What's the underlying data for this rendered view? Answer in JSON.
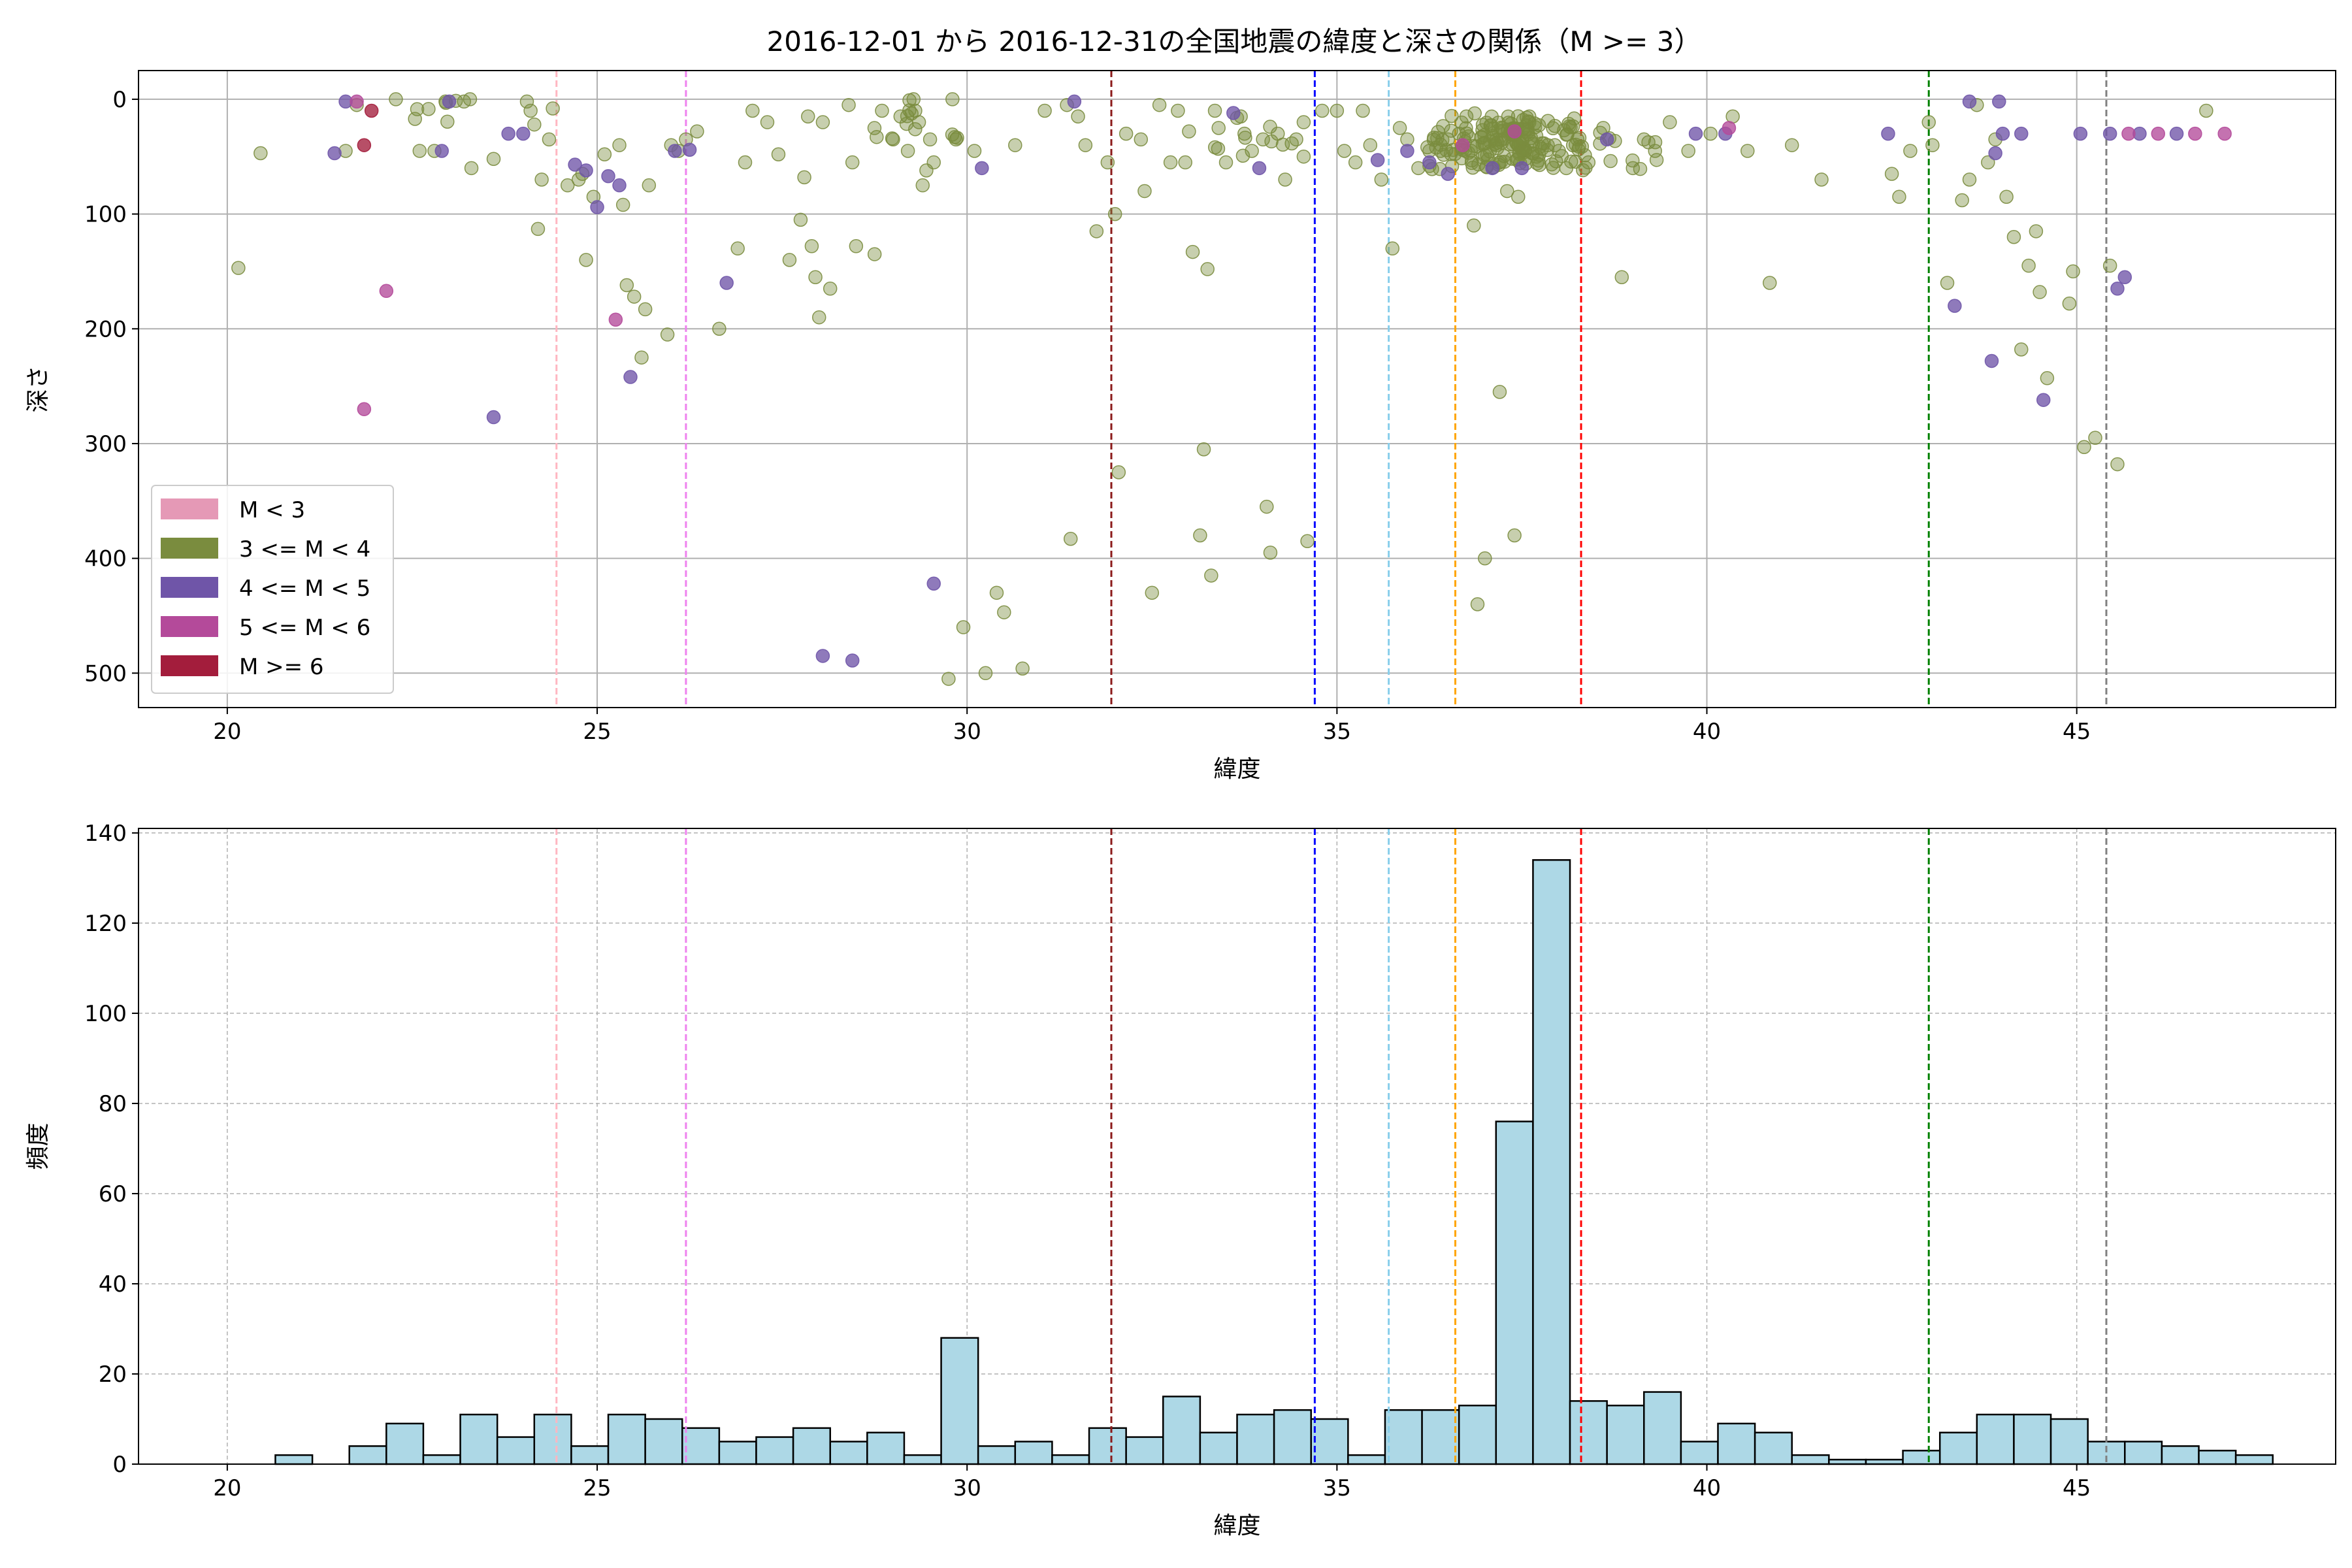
{
  "title": "2016-12-01 から 2016-12-31の全国地震の緯度と深さの関係（M >= 3）",
  "colors": {
    "m_lt3": "#e599b6",
    "m3_4": "#7a8c3e",
    "m4_5": "#6f55a8",
    "m5_6": "#b44a9a",
    "m_ge6": "#a31d3c",
    "hist_fill": "#add8e6",
    "hist_edge": "#000000",
    "grid": "#b0b0b0"
  },
  "vlines": [
    {
      "x": 24.45,
      "color": "#ffb6c1"
    },
    {
      "x": 26.2,
      "color": "#ee82ee"
    },
    {
      "x": 31.95,
      "color": "#8b1a1a"
    },
    {
      "x": 34.7,
      "color": "#0000ff"
    },
    {
      "x": 35.7,
      "color": "#87ceeb"
    },
    {
      "x": 36.6,
      "color": "#ffa500"
    },
    {
      "x": 38.3,
      "color": "#ff0000"
    },
    {
      "x": 43.0,
      "color": "#008000"
    },
    {
      "x": 45.4,
      "color": "#808080"
    }
  ],
  "chart_data": [
    {
      "type": "scatter",
      "title": "2016-12-01 から 2016-12-31の全国地震の緯度と深さの関係（M >= 3）",
      "xlabel": "緯度",
      "ylabel": "深さ",
      "xlim": [
        18.8,
        48.5
      ],
      "ylim": [
        530,
        -25
      ],
      "y_inverted": true,
      "xticks": [
        20,
        25,
        30,
        35,
        40,
        45
      ],
      "yticks": [
        0,
        100,
        200,
        300,
        400,
        500
      ],
      "grid": true,
      "legend_position": "lower-left",
      "legend": [
        "M < 3",
        "3 <= M < 4",
        "4 <= M < 5",
        "5 <= M < 6",
        "M >= 6"
      ],
      "series": [
        {
          "name": "3 <= M < 4",
          "color_key": "m3_4",
          "points": [
            [
              20.15,
              147
            ],
            [
              20.45,
              47
            ],
            [
              21.6,
              45
            ],
            [
              21.75,
              5
            ],
            [
              22.6,
              45
            ],
            [
              22.8,
              45
            ],
            [
              22.95,
              2
            ],
            [
              23.2,
              2
            ],
            [
              23.3,
              60
            ],
            [
              23.6,
              52
            ],
            [
              24.05,
              2
            ],
            [
              24.1,
              10
            ],
            [
              24.15,
              22
            ],
            [
              24.2,
              113
            ],
            [
              24.25,
              70
            ],
            [
              24.4,
              8
            ],
            [
              24.35,
              35
            ],
            [
              24.6,
              75
            ],
            [
              24.75,
              70
            ],
            [
              24.8,
              65
            ],
            [
              24.85,
              140
            ],
            [
              24.95,
              85
            ],
            [
              25.1,
              48
            ],
            [
              25.3,
              40
            ],
            [
              25.35,
              92
            ],
            [
              25.4,
              162
            ],
            [
              25.5,
              172
            ],
            [
              25.6,
              225
            ],
            [
              25.65,
              183
            ],
            [
              25.7,
              75
            ],
            [
              25.95,
              205
            ],
            [
              26.0,
              40
            ],
            [
              26.1,
              45
            ],
            [
              26.2,
              35
            ],
            [
              26.35,
              28
            ],
            [
              26.65,
              200
            ],
            [
              26.9,
              130
            ],
            [
              27.0,
              55
            ],
            [
              27.1,
              10
            ],
            [
              27.3,
              20
            ],
            [
              27.45,
              48
            ],
            [
              27.6,
              140
            ],
            [
              27.75,
              105
            ],
            [
              27.8,
              68
            ],
            [
              27.85,
              15
            ],
            [
              27.9,
              128
            ],
            [
              27.95,
              155
            ],
            [
              28.0,
              190
            ],
            [
              28.05,
              20
            ],
            [
              28.15,
              165
            ],
            [
              28.4,
              5
            ],
            [
              28.45,
              55
            ],
            [
              28.5,
              128
            ],
            [
              28.75,
              135
            ],
            [
              28.85,
              10
            ],
            [
              29.0,
              35
            ],
            [
              29.1,
              15
            ],
            [
              29.2,
              45
            ],
            [
              29.3,
              10
            ],
            [
              29.35,
              20
            ],
            [
              29.4,
              75
            ],
            [
              29.45,
              62
            ],
            [
              29.5,
              35
            ],
            [
              29.55,
              55
            ],
            [
              29.75,
              505
            ],
            [
              29.85,
              35
            ],
            [
              29.95,
              460
            ],
            [
              30.1,
              45
            ],
            [
              30.25,
              500
            ],
            [
              30.4,
              430
            ],
            [
              30.5,
              447
            ],
            [
              30.65,
              40
            ],
            [
              30.75,
              496
            ],
            [
              31.05,
              10
            ],
            [
              31.35,
              5
            ],
            [
              31.4,
              383
            ],
            [
              31.5,
              15
            ],
            [
              31.6,
              40
            ],
            [
              31.75,
              115
            ],
            [
              31.9,
              55
            ],
            [
              32.0,
              100
            ],
            [
              32.05,
              325
            ],
            [
              32.15,
              30
            ],
            [
              32.35,
              35
            ],
            [
              32.4,
              80
            ],
            [
              32.5,
              430
            ],
            [
              32.6,
              5
            ],
            [
              32.75,
              55
            ],
            [
              32.85,
              10
            ],
            [
              32.95,
              55
            ],
            [
              33.0,
              28
            ],
            [
              33.05,
              133
            ],
            [
              33.15,
              380
            ],
            [
              33.2,
              305
            ],
            [
              33.25,
              148
            ],
            [
              33.3,
              415
            ],
            [
              33.35,
              10
            ],
            [
              33.4,
              25
            ],
            [
              33.5,
              55
            ],
            [
              33.7,
              15
            ],
            [
              33.75,
              30
            ],
            [
              33.85,
              45
            ],
            [
              34.0,
              35
            ],
            [
              34.05,
              355
            ],
            [
              34.1,
              395
            ],
            [
              34.2,
              30
            ],
            [
              34.3,
              70
            ],
            [
              34.45,
              35
            ],
            [
              34.55,
              20
            ],
            [
              34.6,
              385
            ],
            [
              34.8,
              10
            ],
            [
              35.0,
              10
            ],
            [
              35.1,
              45
            ],
            [
              35.25,
              55
            ],
            [
              35.35,
              10
            ],
            [
              35.45,
              40
            ],
            [
              35.6,
              70
            ],
            [
              35.75,
              130
            ],
            [
              35.85,
              25
            ],
            [
              35.95,
              35
            ],
            [
              36.1,
              60
            ],
            [
              36.25,
              45
            ],
            [
              36.4,
              45
            ],
            [
              36.5,
              35
            ],
            [
              36.65,
              30
            ],
            [
              36.75,
              15
            ],
            [
              36.85,
              110
            ],
            [
              36.9,
              440
            ],
            [
              37.0,
              400
            ],
            [
              37.15,
              40
            ],
            [
              37.2,
              255
            ],
            [
              37.3,
              80
            ],
            [
              37.4,
              380
            ],
            [
              37.45,
              85
            ],
            [
              37.6,
              15
            ],
            [
              37.7,
              50
            ],
            [
              37.85,
              40
            ],
            [
              38.0,
              45
            ],
            [
              38.1,
              60
            ],
            [
              38.25,
              35
            ],
            [
              38.4,
              55
            ],
            [
              38.6,
              25
            ],
            [
              38.85,
              155
            ],
            [
              39.0,
              60
            ],
            [
              39.15,
              35
            ],
            [
              39.3,
              45
            ],
            [
              39.5,
              20
            ],
            [
              39.75,
              45
            ],
            [
              40.05,
              30
            ],
            [
              40.35,
              15
            ],
            [
              40.55,
              45
            ],
            [
              40.85,
              160
            ],
            [
              41.15,
              40
            ],
            [
              41.55,
              70
            ],
            [
              42.5,
              65
            ],
            [
              42.6,
              85
            ],
            [
              42.75,
              45
            ],
            [
              43.0,
              20
            ],
            [
              43.05,
              40
            ],
            [
              43.25,
              160
            ],
            [
              43.45,
              88
            ],
            [
              43.55,
              70
            ],
            [
              43.65,
              5
            ],
            [
              43.8,
              55
            ],
            [
              43.9,
              35
            ],
            [
              44.05,
              85
            ],
            [
              44.15,
              120
            ],
            [
              44.25,
              218
            ],
            [
              44.35,
              145
            ],
            [
              44.45,
              115
            ],
            [
              44.5,
              168
            ],
            [
              44.6,
              243
            ],
            [
              44.9,
              178
            ],
            [
              44.95,
              150
            ],
            [
              45.1,
              303
            ],
            [
              45.25,
              295
            ],
            [
              45.45,
              145
            ],
            [
              45.55,
              318
            ],
            [
              46.75,
              10
            ]
          ],
          "dense": [
            [
              37.3,
              40,
              55
            ],
            [
              37.0,
              30,
              40
            ],
            [
              36.8,
              45,
              30
            ],
            [
              37.6,
              35,
              30
            ],
            [
              38.0,
              45,
              20
            ],
            [
              29.3,
              15,
              14
            ],
            [
              38.7,
              45,
              14
            ],
            [
              33.9,
              30,
              10
            ],
            [
              22.9,
              5,
              8
            ]
          ]
        },
        {
          "name": "4 <= M < 5",
          "color_key": "m4_5",
          "points": [
            [
              21.45,
              47
            ],
            [
              21.6,
              2
            ],
            [
              22.9,
              45
            ],
            [
              23.0,
              2
            ],
            [
              23.6,
              277
            ],
            [
              23.8,
              30
            ],
            [
              24.0,
              30
            ],
            [
              24.7,
              57
            ],
            [
              24.85,
              62
            ],
            [
              25.0,
              94
            ],
            [
              25.15,
              67
            ],
            [
              25.45,
              242
            ],
            [
              25.3,
              75
            ],
            [
              26.05,
              45
            ],
            [
              26.25,
              44
            ],
            [
              29.55,
              422
            ],
            [
              30.2,
              60
            ],
            [
              26.75,
              160
            ],
            [
              28.05,
              485
            ],
            [
              28.45,
              489
            ],
            [
              31.45,
              2
            ],
            [
              33.6,
              12
            ],
            [
              33.95,
              60
            ],
            [
              35.55,
              53
            ],
            [
              35.95,
              45
            ],
            [
              36.25,
              55
            ],
            [
              36.5,
              65
            ],
            [
              37.1,
              60
            ],
            [
              37.5,
              60
            ],
            [
              38.65,
              35
            ],
            [
              39.85,
              30
            ],
            [
              40.25,
              30
            ],
            [
              42.45,
              30
            ],
            [
              43.9,
              47
            ],
            [
              43.95,
              2
            ],
            [
              44.0,
              30
            ],
            [
              43.35,
              180
            ],
            [
              43.55,
              2
            ],
            [
              43.85,
              228
            ],
            [
              44.25,
              30
            ],
            [
              44.55,
              262
            ],
            [
              45.05,
              30
            ],
            [
              45.45,
              30
            ],
            [
              45.55,
              165
            ],
            [
              45.65,
              155
            ],
            [
              45.85,
              30
            ],
            [
              46.35,
              30
            ]
          ],
          "dense": []
        },
        {
          "name": "5 <= M < 6",
          "color_key": "m5_6",
          "points": [
            [
              21.75,
              2
            ],
            [
              21.85,
              270
            ],
            [
              22.15,
              167
            ],
            [
              25.25,
              192
            ],
            [
              36.7,
              40
            ],
            [
              40.3,
              25
            ],
            [
              45.7,
              30
            ],
            [
              46.1,
              30
            ],
            [
              46.6,
              30
            ],
            [
              47.0,
              30
            ],
            [
              37.4,
              28
            ]
          ],
          "dense": []
        },
        {
          "name": "M >= 6",
          "color_key": "m_ge6",
          "points": [
            [
              21.95,
              10
            ],
            [
              21.85,
              40
            ]
          ],
          "dense": []
        }
      ]
    },
    {
      "type": "bar",
      "xlabel": "緯度",
      "ylabel": "頻度",
      "xlim": [
        18.8,
        48.5
      ],
      "ylim": [
        0,
        141
      ],
      "xticks": [
        20,
        25,
        30,
        35,
        40,
        45
      ],
      "yticks": [
        0,
        20,
        40,
        60,
        80,
        100,
        120,
        140
      ],
      "grid": true,
      "bin_start": 20.15,
      "bin_width": 0.5,
      "counts": [
        0,
        2,
        0,
        4,
        9,
        2,
        11,
        6,
        11,
        4,
        11,
        10,
        8,
        5,
        6,
        8,
        5,
        7,
        2,
        28,
        4,
        5,
        2,
        8,
        6,
        15,
        7,
        11,
        12,
        10,
        2,
        12,
        12,
        13,
        76,
        134,
        14,
        13,
        16,
        5,
        9,
        7,
        2,
        1,
        1,
        3,
        7,
        11,
        11,
        10,
        5,
        5,
        4,
        3,
        2
      ]
    }
  ]
}
